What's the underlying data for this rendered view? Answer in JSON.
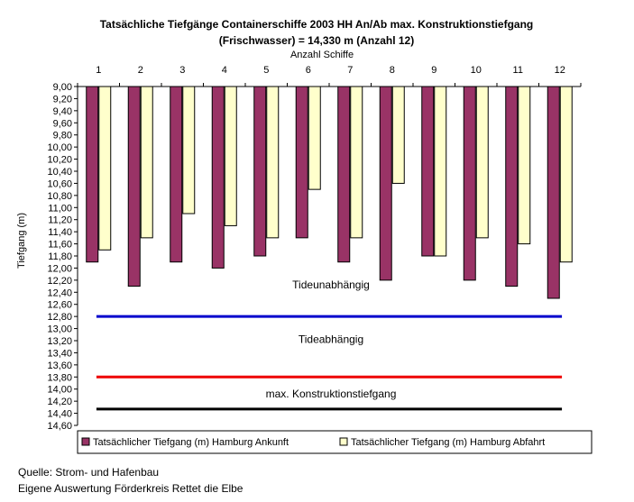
{
  "chart_data": {
    "type": "bar",
    "title": "Tatsächliche Tiefgänge Containerschiffe 2003 HH An/Ab max. Konstruktionstiefgang",
    "subtitle": "(Frischwasser) = 14,330 m (Anzahl 12)",
    "xlabel": "Anzahl Schiffe",
    "ylabel": "Tiefgang (m)",
    "categories": [
      "1",
      "2",
      "3",
      "4",
      "5",
      "6",
      "7",
      "8",
      "9",
      "10",
      "11",
      "12"
    ],
    "ylim": [
      9.0,
      14.6
    ],
    "y_reversed": true,
    "y_ticks": [
      "9,00",
      "9,20",
      "9,40",
      "9,60",
      "9,80",
      "10,00",
      "10,20",
      "10,40",
      "10,60",
      "10,80",
      "11,00",
      "11,20",
      "11,40",
      "11,60",
      "11,80",
      "12,00",
      "12,20",
      "12,40",
      "12,60",
      "12,80",
      "13,00",
      "13,20",
      "13,40",
      "13,60",
      "13,80",
      "14,00",
      "14,20",
      "14,40",
      "14,60"
    ],
    "series": [
      {
        "name": "Tatsächlicher Tiefgang (m) Hamburg Ankunft",
        "color": "#993366",
        "values": [
          11.9,
          12.3,
          11.9,
          12.0,
          11.8,
          11.5,
          11.9,
          12.2,
          11.8,
          12.2,
          12.3,
          12.5
        ]
      },
      {
        "name": "Tatsächlicher Tiefgang (m) Hamburg Abfahrt",
        "color": "#ffffcc",
        "values": [
          11.7,
          11.5,
          11.1,
          11.3,
          11.5,
          10.7,
          11.5,
          10.6,
          11.8,
          11.5,
          11.6,
          11.9
        ]
      }
    ],
    "reference_lines": [
      {
        "value": 12.8,
        "color": "#0000cc"
      },
      {
        "value": 13.8,
        "color": "#ee0000"
      },
      {
        "value": 14.33,
        "color": "#000000"
      }
    ],
    "annotations": [
      {
        "text": "Tideunabhängig",
        "y": 12.28
      },
      {
        "text": "Tideabhängig",
        "y": 13.18
      },
      {
        "text": "max. Konstruktionstiefgang",
        "y": 14.08
      }
    ],
    "grid": false,
    "legend_position": "bottom"
  },
  "source": {
    "line1": "Quelle: Strom- und Hafenbau",
    "line2": "Eigene Auswertung Förderkreis Rettet die Elbe"
  }
}
